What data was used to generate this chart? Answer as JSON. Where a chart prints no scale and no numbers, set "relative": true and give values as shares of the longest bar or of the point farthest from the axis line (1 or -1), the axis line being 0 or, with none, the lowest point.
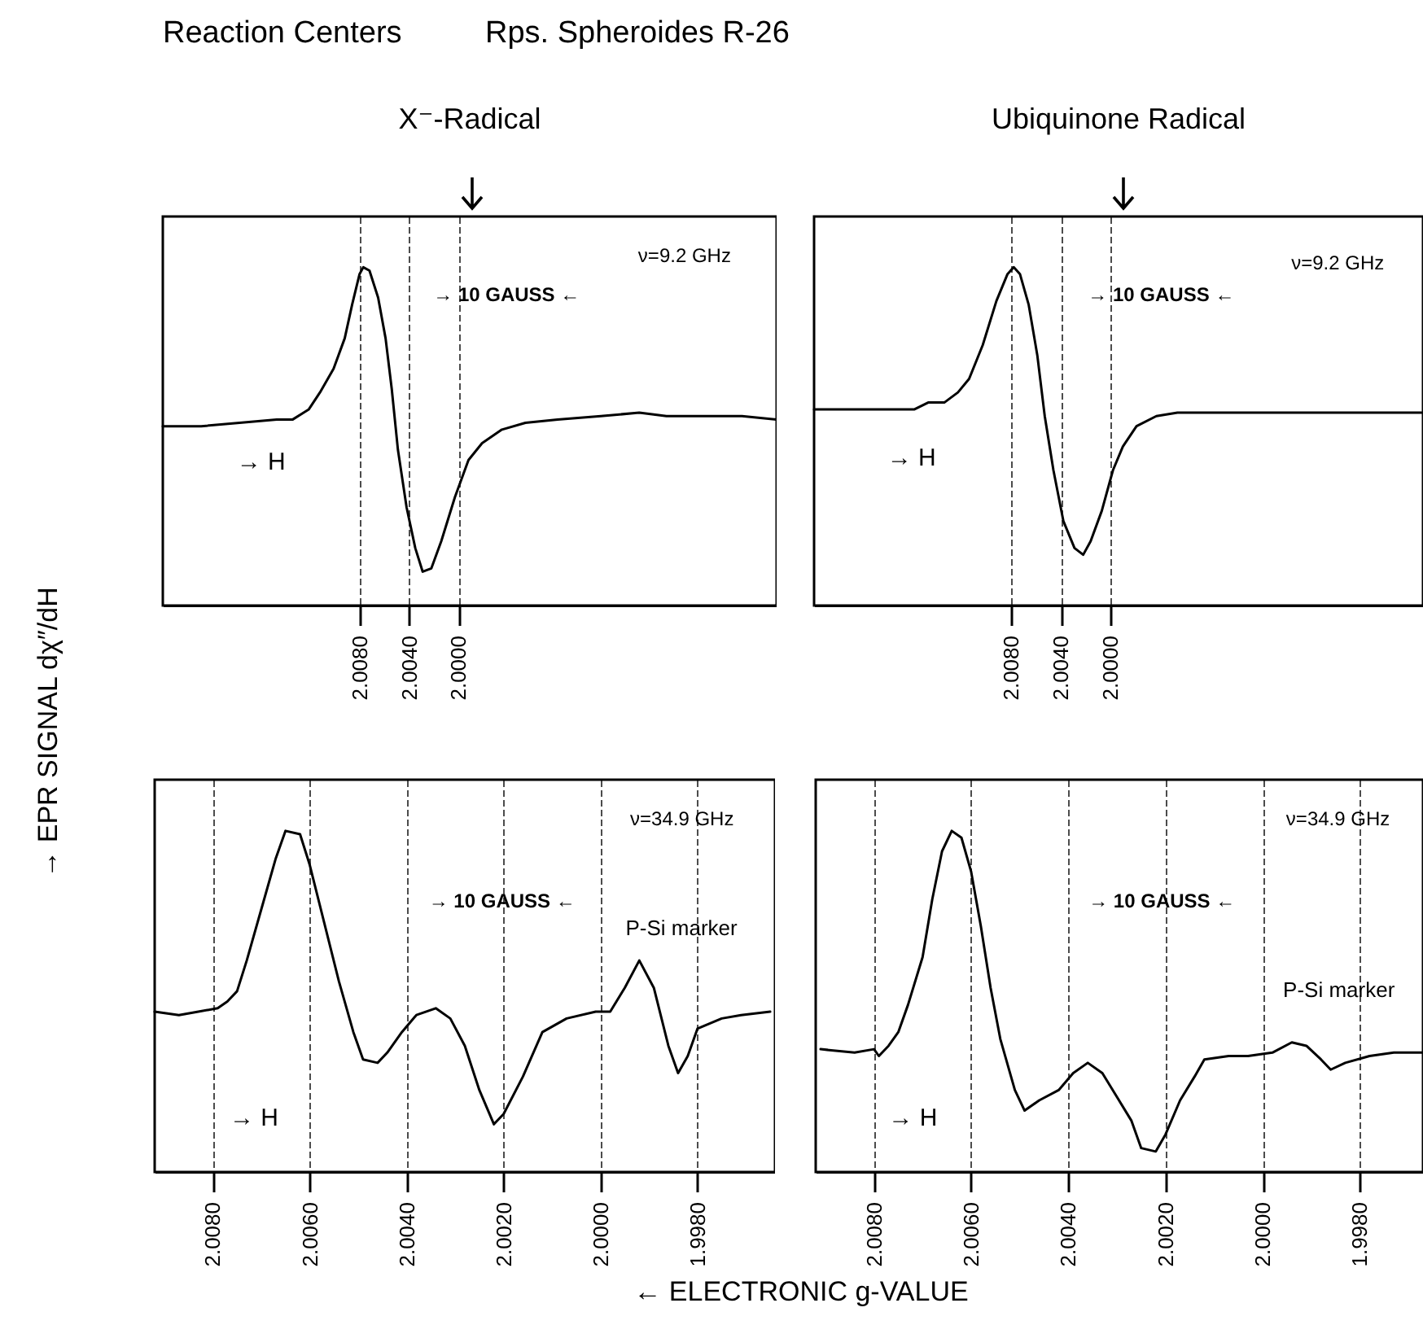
{
  "chart_data": [
    {
      "type": "other",
      "title": "Reaction Centers",
      "subtitle": "Rps. Spheroides R-26",
      "xlabel": "← ELECTRONIC g-VALUE",
      "ylabel": "→ EPR SIGNAL dχ″/dH"
    },
    {
      "type": "line",
      "title": "X⁻-Radical",
      "relative": true,
      "color": "#000000",
      "grid": "x",
      "tick_labels": "x",
      "x": [
        2.0239,
        2.0208,
        2.0177,
        2.0147,
        2.0134,
        2.0121,
        2.0112,
        2.0101,
        2.0092,
        2.0086,
        2.008,
        2.0077,
        2.0072,
        2.0065,
        2.0059,
        2.0054,
        2.0049,
        2.0042,
        2.0035,
        2.0029,
        2.0022,
        2.0014,
        2.0003,
        1.9992,
        1.9981,
        1.9965,
        1.9946,
        1.992,
        1.9885,
        1.9854,
        1.9832,
        1.9797,
        1.9771,
        1.9743
      ],
      "values": [
        0.53,
        0.53,
        0.54,
        0.55,
        0.55,
        0.58,
        0.63,
        0.7,
        0.79,
        0.89,
        0.98,
        1.0,
        0.99,
        0.91,
        0.79,
        0.64,
        0.46,
        0.29,
        0.17,
        0.1,
        0.11,
        0.19,
        0.32,
        0.43,
        0.48,
        0.52,
        0.54,
        0.55,
        0.56,
        0.57,
        0.56,
        0.56,
        0.56,
        0.55
      ],
      "xlim": [
        2.0239,
        1.9743
      ],
      "xticks": [
        {
          "value": 2.008,
          "label": "2.0080"
        },
        {
          "value": 2.004,
          "label": "2.0040"
        },
        {
          "value": 2.0,
          "label": "2.0000"
        }
      ],
      "annotations": [
        "ν=9.2 GHz",
        "→ 10 GAUSS ←",
        "→ H"
      ]
    },
    {
      "type": "line",
      "title": "Ubiquinone Radical",
      "relative": true,
      "color": "#000000",
      "grid": "x",
      "tick_labels": "x",
      "x": [
        2.0239,
        2.0208,
        2.0177,
        2.0158,
        2.0147,
        2.0134,
        2.0123,
        2.0114,
        2.0103,
        2.0092,
        2.0083,
        2.0078,
        2.0073,
        2.0066,
        2.0059,
        2.0053,
        2.0046,
        2.0038,
        2.0029,
        2.0022,
        2.0016,
        2.0007,
        1.9998,
        1.999,
        1.9979,
        1.9963,
        1.9946,
        1.9902,
        1.9858,
        1.9815,
        1.9771,
        1.9749
      ],
      "values": [
        0.58,
        0.58,
        0.58,
        0.58,
        0.6,
        0.6,
        0.63,
        0.67,
        0.77,
        0.9,
        0.98,
        1.0,
        0.98,
        0.89,
        0.74,
        0.56,
        0.4,
        0.25,
        0.17,
        0.15,
        0.19,
        0.28,
        0.4,
        0.47,
        0.53,
        0.56,
        0.57,
        0.57,
        0.57,
        0.57,
        0.57,
        0.57
      ],
      "xlim": [
        2.0239,
        1.9748
      ],
      "xticks": [
        {
          "value": 2.008,
          "label": "2.0080"
        },
        {
          "value": 2.004,
          "label": "2.0040"
        },
        {
          "value": 2.0,
          "label": "2.0000"
        }
      ],
      "annotations": [
        "ν=9.2 GHz",
        "→ 10 GAUSS ←",
        "→ H"
      ]
    },
    {
      "type": "line",
      "relative": true,
      "color": "#000000",
      "grid": "x",
      "tick_labels": "x",
      "x": [
        2.0092,
        2.0087,
        2.0083,
        2.0079,
        2.0077,
        2.0075,
        2.0073,
        2.007,
        2.0067,
        2.0065,
        2.0062,
        2.006,
        2.0057,
        2.0054,
        2.0051,
        2.0049,
        2.0046,
        2.0044,
        2.0041,
        2.0038,
        2.0034,
        2.0031,
        2.0028,
        2.0025,
        2.0022,
        2.002,
        2.0016,
        2.0012,
        2.0007,
        2.0001,
        1.9998,
        1.9995,
        1.9992,
        1.9989,
        1.9986,
        1.9984,
        1.9982,
        1.998,
        1.9975,
        1.9971,
        1.9965
      ],
      "values": [
        0.47,
        0.46,
        0.47,
        0.48,
        0.5,
        0.53,
        0.62,
        0.77,
        0.92,
        1.0,
        0.99,
        0.9,
        0.73,
        0.56,
        0.41,
        0.33,
        0.32,
        0.35,
        0.41,
        0.46,
        0.48,
        0.45,
        0.37,
        0.24,
        0.14,
        0.17,
        0.28,
        0.41,
        0.45,
        0.47,
        0.47,
        0.54,
        0.62,
        0.54,
        0.37,
        0.29,
        0.34,
        0.42,
        0.45,
        0.46,
        0.47
      ],
      "xlim": [
        2.0092,
        1.9964
      ],
      "xticks": [
        {
          "value": 2.008,
          "label": "2.0080"
        },
        {
          "value": 2.006,
          "label": "2.0060"
        },
        {
          "value": 2.004,
          "label": "2.0040"
        },
        {
          "value": 2.002,
          "label": "2.0020"
        },
        {
          "value": 2.0,
          "label": "2.0000"
        },
        {
          "value": 1.998,
          "label": "1.9980"
        }
      ],
      "annotations": [
        "ν=34.9 GHz",
        "→ 10 GAUSS ←",
        "→ H",
        {
          "text": "P-Si marker",
          "x": 1.9988,
          "y": 0.55
        }
      ]
    },
    {
      "type": "line",
      "relative": true,
      "color": "#000000",
      "grid": "x",
      "tick_labels": "x",
      "x": [
        2.0091,
        2.0084,
        2.008,
        2.0079,
        2.0077,
        2.0075,
        2.0073,
        2.007,
        2.0068,
        2.0066,
        2.0064,
        2.0062,
        2.006,
        2.0058,
        2.0056,
        2.0054,
        2.0051,
        2.0049,
        2.0046,
        2.0042,
        2.0039,
        2.0036,
        2.0033,
        2.003,
        2.0027,
        2.0025,
        2.0022,
        2.002,
        2.0017,
        2.0014,
        2.0012,
        2.0007,
        2.0003,
        1.9998,
        1.9994,
        1.9991,
        1.9988,
        1.9986,
        1.9983,
        1.9978,
        1.9973,
        1.9967
      ],
      "values": [
        0.36,
        0.35,
        0.36,
        0.34,
        0.37,
        0.41,
        0.49,
        0.63,
        0.8,
        0.94,
        1.0,
        0.98,
        0.88,
        0.72,
        0.54,
        0.39,
        0.24,
        0.18,
        0.21,
        0.24,
        0.29,
        0.32,
        0.29,
        0.22,
        0.15,
        0.07,
        0.06,
        0.11,
        0.21,
        0.28,
        0.33,
        0.34,
        0.34,
        0.35,
        0.38,
        0.37,
        0.33,
        0.3,
        0.32,
        0.34,
        0.35,
        0.35
      ],
      "xlim": [
        2.0092,
        1.9967
      ],
      "xticks": [
        {
          "value": 2.008,
          "label": "2.0080"
        },
        {
          "value": 2.006,
          "label": "2.0060"
        },
        {
          "value": 2.004,
          "label": "2.0040"
        },
        {
          "value": 2.002,
          "label": "2.0020"
        },
        {
          "value": 2.0,
          "label": "2.0000"
        },
        {
          "value": 1.998,
          "label": "1.9980"
        }
      ],
      "annotations": [
        "ν=34.9 GHz",
        "→ 10 GAUSS ←",
        "→ H",
        {
          "text": "P-Si marker",
          "x": 1.9989,
          "y": 0.37
        }
      ]
    }
  ]
}
